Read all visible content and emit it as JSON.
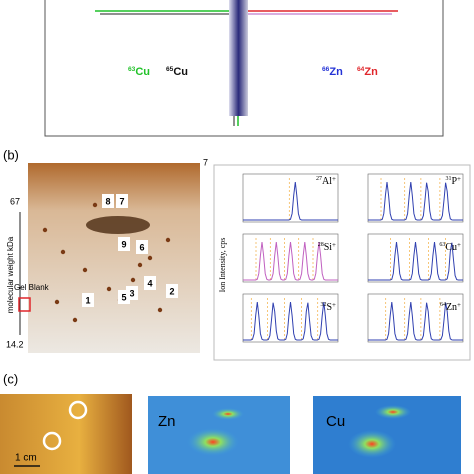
{
  "panel_a": {
    "labels": [
      {
        "mass": "63",
        "element": "Cu",
        "color": "#22c22a"
      },
      {
        "mass": "65",
        "element": "Cu",
        "color": "#111111"
      },
      {
        "mass": "66",
        "element": "Zn",
        "color": "#2433d6"
      },
      {
        "mass": "64",
        "element": "Zn",
        "color": "#e0262b"
      }
    ]
  },
  "panel_b": {
    "label": "(b)",
    "gel": {
      "top_mw": "67",
      "bottom_mw": "14.2",
      "corner": "7",
      "axis_label": "molecular weight kDa",
      "blank_label": "Gel Blank",
      "spots": [
        "1",
        "2",
        "3",
        "4",
        "5",
        "6",
        "9",
        "8",
        "7"
      ]
    },
    "plots": {
      "y_axis_label": "Ion Intensity, cps",
      "items": [
        {
          "mass": "27",
          "element": "Al",
          "charge": "+"
        },
        {
          "mass": "31",
          "element": "P",
          "charge": "+"
        },
        {
          "mass": "28",
          "element": "Si",
          "charge": "+"
        },
        {
          "mass": "63",
          "element": "Cu",
          "charge": "+"
        },
        {
          "mass": "32",
          "element": "S",
          "charge": "+"
        },
        {
          "mass": "64",
          "element": "Zn",
          "charge": "+"
        }
      ]
    }
  },
  "panel_c": {
    "label": "(c)",
    "maps": [
      "Zn",
      "Cu"
    ],
    "scale": "1 cm"
  }
}
